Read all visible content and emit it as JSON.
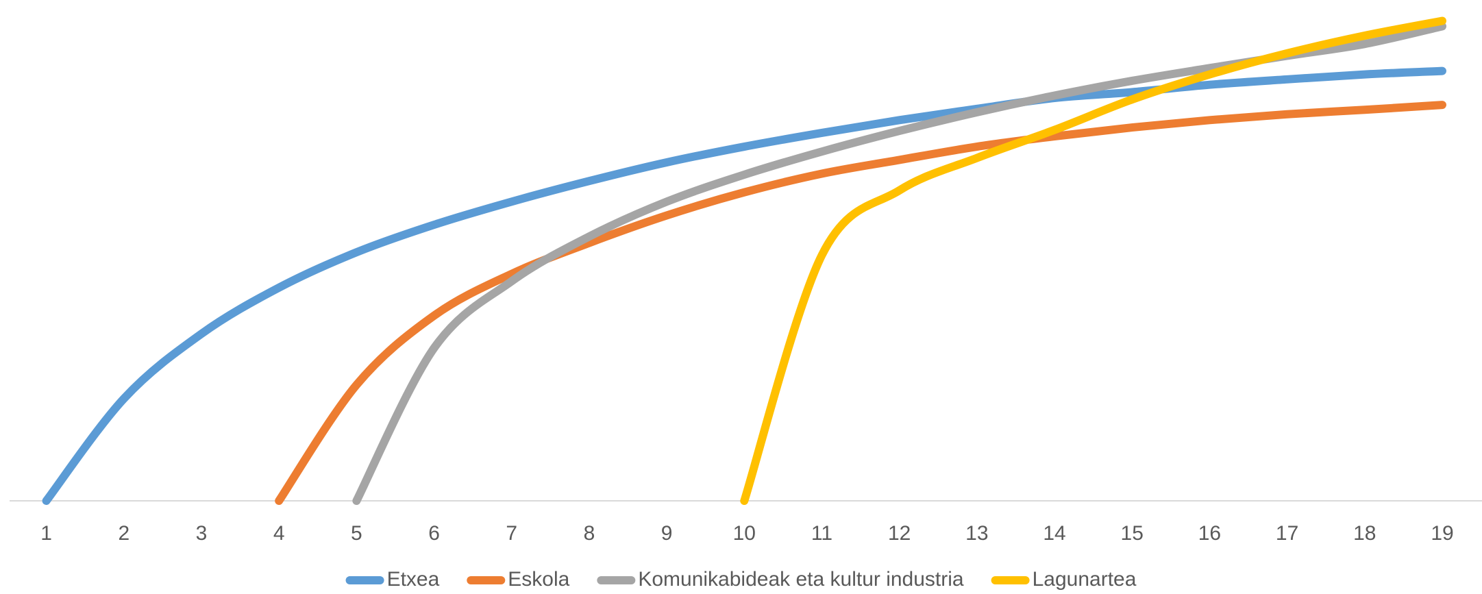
{
  "chart_data": {
    "type": "line",
    "categories": [
      "1",
      "2",
      "3",
      "4",
      "5",
      "6",
      "7",
      "8",
      "9",
      "10",
      "11",
      "12",
      "13",
      "14",
      "15",
      "16",
      "17",
      "18",
      "19"
    ],
    "series": [
      {
        "name": "Etxea",
        "color": "#5b9bd5",
        "values": [
          0,
          20.8,
          34,
          43.4,
          50.6,
          56.2,
          60.9,
          65.1,
          68.9,
          72.1,
          74.9,
          77.5,
          79.8,
          82,
          83.2,
          84.7,
          85.8,
          86.8,
          87.5
        ]
      },
      {
        "name": "Eskola",
        "color": "#ed7d31",
        "values": [
          null,
          null,
          null,
          0,
          23.6,
          37.7,
          46.2,
          52.5,
          58.1,
          62.8,
          66.6,
          69.4,
          72.1,
          74.2,
          76,
          77.5,
          78.7,
          79.6,
          80.6
        ]
      },
      {
        "name": "Komunikabideak eta kultur industria",
        "color": "#a5a5a5",
        "values": [
          null,
          null,
          null,
          null,
          0,
          31.1,
          44.7,
          53.8,
          60.9,
          66.4,
          71.1,
          75.3,
          79.1,
          82.5,
          85.5,
          88.1,
          90.6,
          93,
          96.6
        ]
      },
      {
        "name": "Lagunartea",
        "color": "#ffc000",
        "values": [
          null,
          null,
          null,
          null,
          null,
          null,
          null,
          null,
          null,
          0,
          50,
          63.2,
          69.8,
          75.5,
          81.7,
          86.8,
          91.1,
          94.7,
          97.7
        ]
      }
    ],
    "ylim": [
      0,
      100
    ],
    "legend": "bottom"
  }
}
